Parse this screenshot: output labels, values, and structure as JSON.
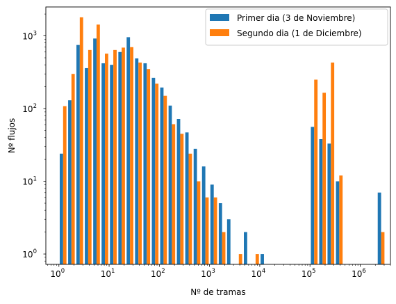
{
  "chart_data": {
    "type": "bar",
    "xlabel": "Nº de tramas",
    "ylabel": "Nº flujos",
    "x_scale": "log",
    "y_scale": "log",
    "xlim": [
      0.55,
      4000000
    ],
    "ylim": [
      0.72,
      2500
    ],
    "x_ticks": [
      {
        "value": 1,
        "base": "10",
        "exp": "0"
      },
      {
        "value": 10,
        "base": "10",
        "exp": "1"
      },
      {
        "value": 100,
        "base": "10",
        "exp": "2"
      },
      {
        "value": 1000,
        "base": "10",
        "exp": "3"
      },
      {
        "value": 10000,
        "base": "10",
        "exp": "4"
      },
      {
        "value": 100000,
        "base": "10",
        "exp": "5"
      },
      {
        "value": 1000000,
        "base": "10",
        "exp": "6"
      }
    ],
    "y_ticks": [
      {
        "value": 1,
        "base": "10",
        "exp": "0"
      },
      {
        "value": 10,
        "base": "10",
        "exp": "1"
      },
      {
        "value": 100,
        "base": "10",
        "exp": "2"
      },
      {
        "value": 1000,
        "base": "10",
        "exp": "3"
      }
    ],
    "grid": false,
    "legend_position": "top-right",
    "bin_edges": [
      1,
      1.47,
      2.15,
      3.16,
      4.64,
      6.81,
      10,
      14.7,
      21.5,
      31.6,
      46.4,
      68.1,
      100,
      147,
      215,
      316,
      464,
      681,
      1000,
      1470,
      2150,
      3160,
      4640,
      6810,
      10000,
      14700,
      21500,
      31600,
      46400,
      68100,
      100000,
      147000,
      215000,
      316000,
      464000,
      681000,
      1000000,
      1470000,
      2150000,
      3160000
    ],
    "series": [
      {
        "name": "Primer dia (3 de Noviembre)",
        "color": "#1f77b4",
        "values": [
          24,
          130,
          750,
          360,
          920,
          420,
          400,
          600,
          960,
          490,
          420,
          265,
          195,
          110,
          72,
          47,
          28,
          16,
          9,
          5,
          3,
          0,
          2,
          0,
          1,
          0,
          0,
          0,
          0,
          0,
          56,
          38,
          33,
          10,
          0,
          0,
          0,
          0,
          7
        ]
      },
      {
        "name": "Segundo dia (1 de Diciembre)",
        "color": "#ff7f0e",
        "values": [
          108,
          300,
          1800,
          640,
          1430,
          570,
          640,
          690,
          700,
          430,
          350,
          220,
          150,
          61,
          45,
          24,
          10,
          6,
          6,
          2,
          0,
          1,
          0,
          1,
          0,
          0,
          0,
          0,
          0,
          0,
          250,
          165,
          430,
          12,
          0,
          0,
          0,
          0,
          2
        ]
      }
    ]
  }
}
